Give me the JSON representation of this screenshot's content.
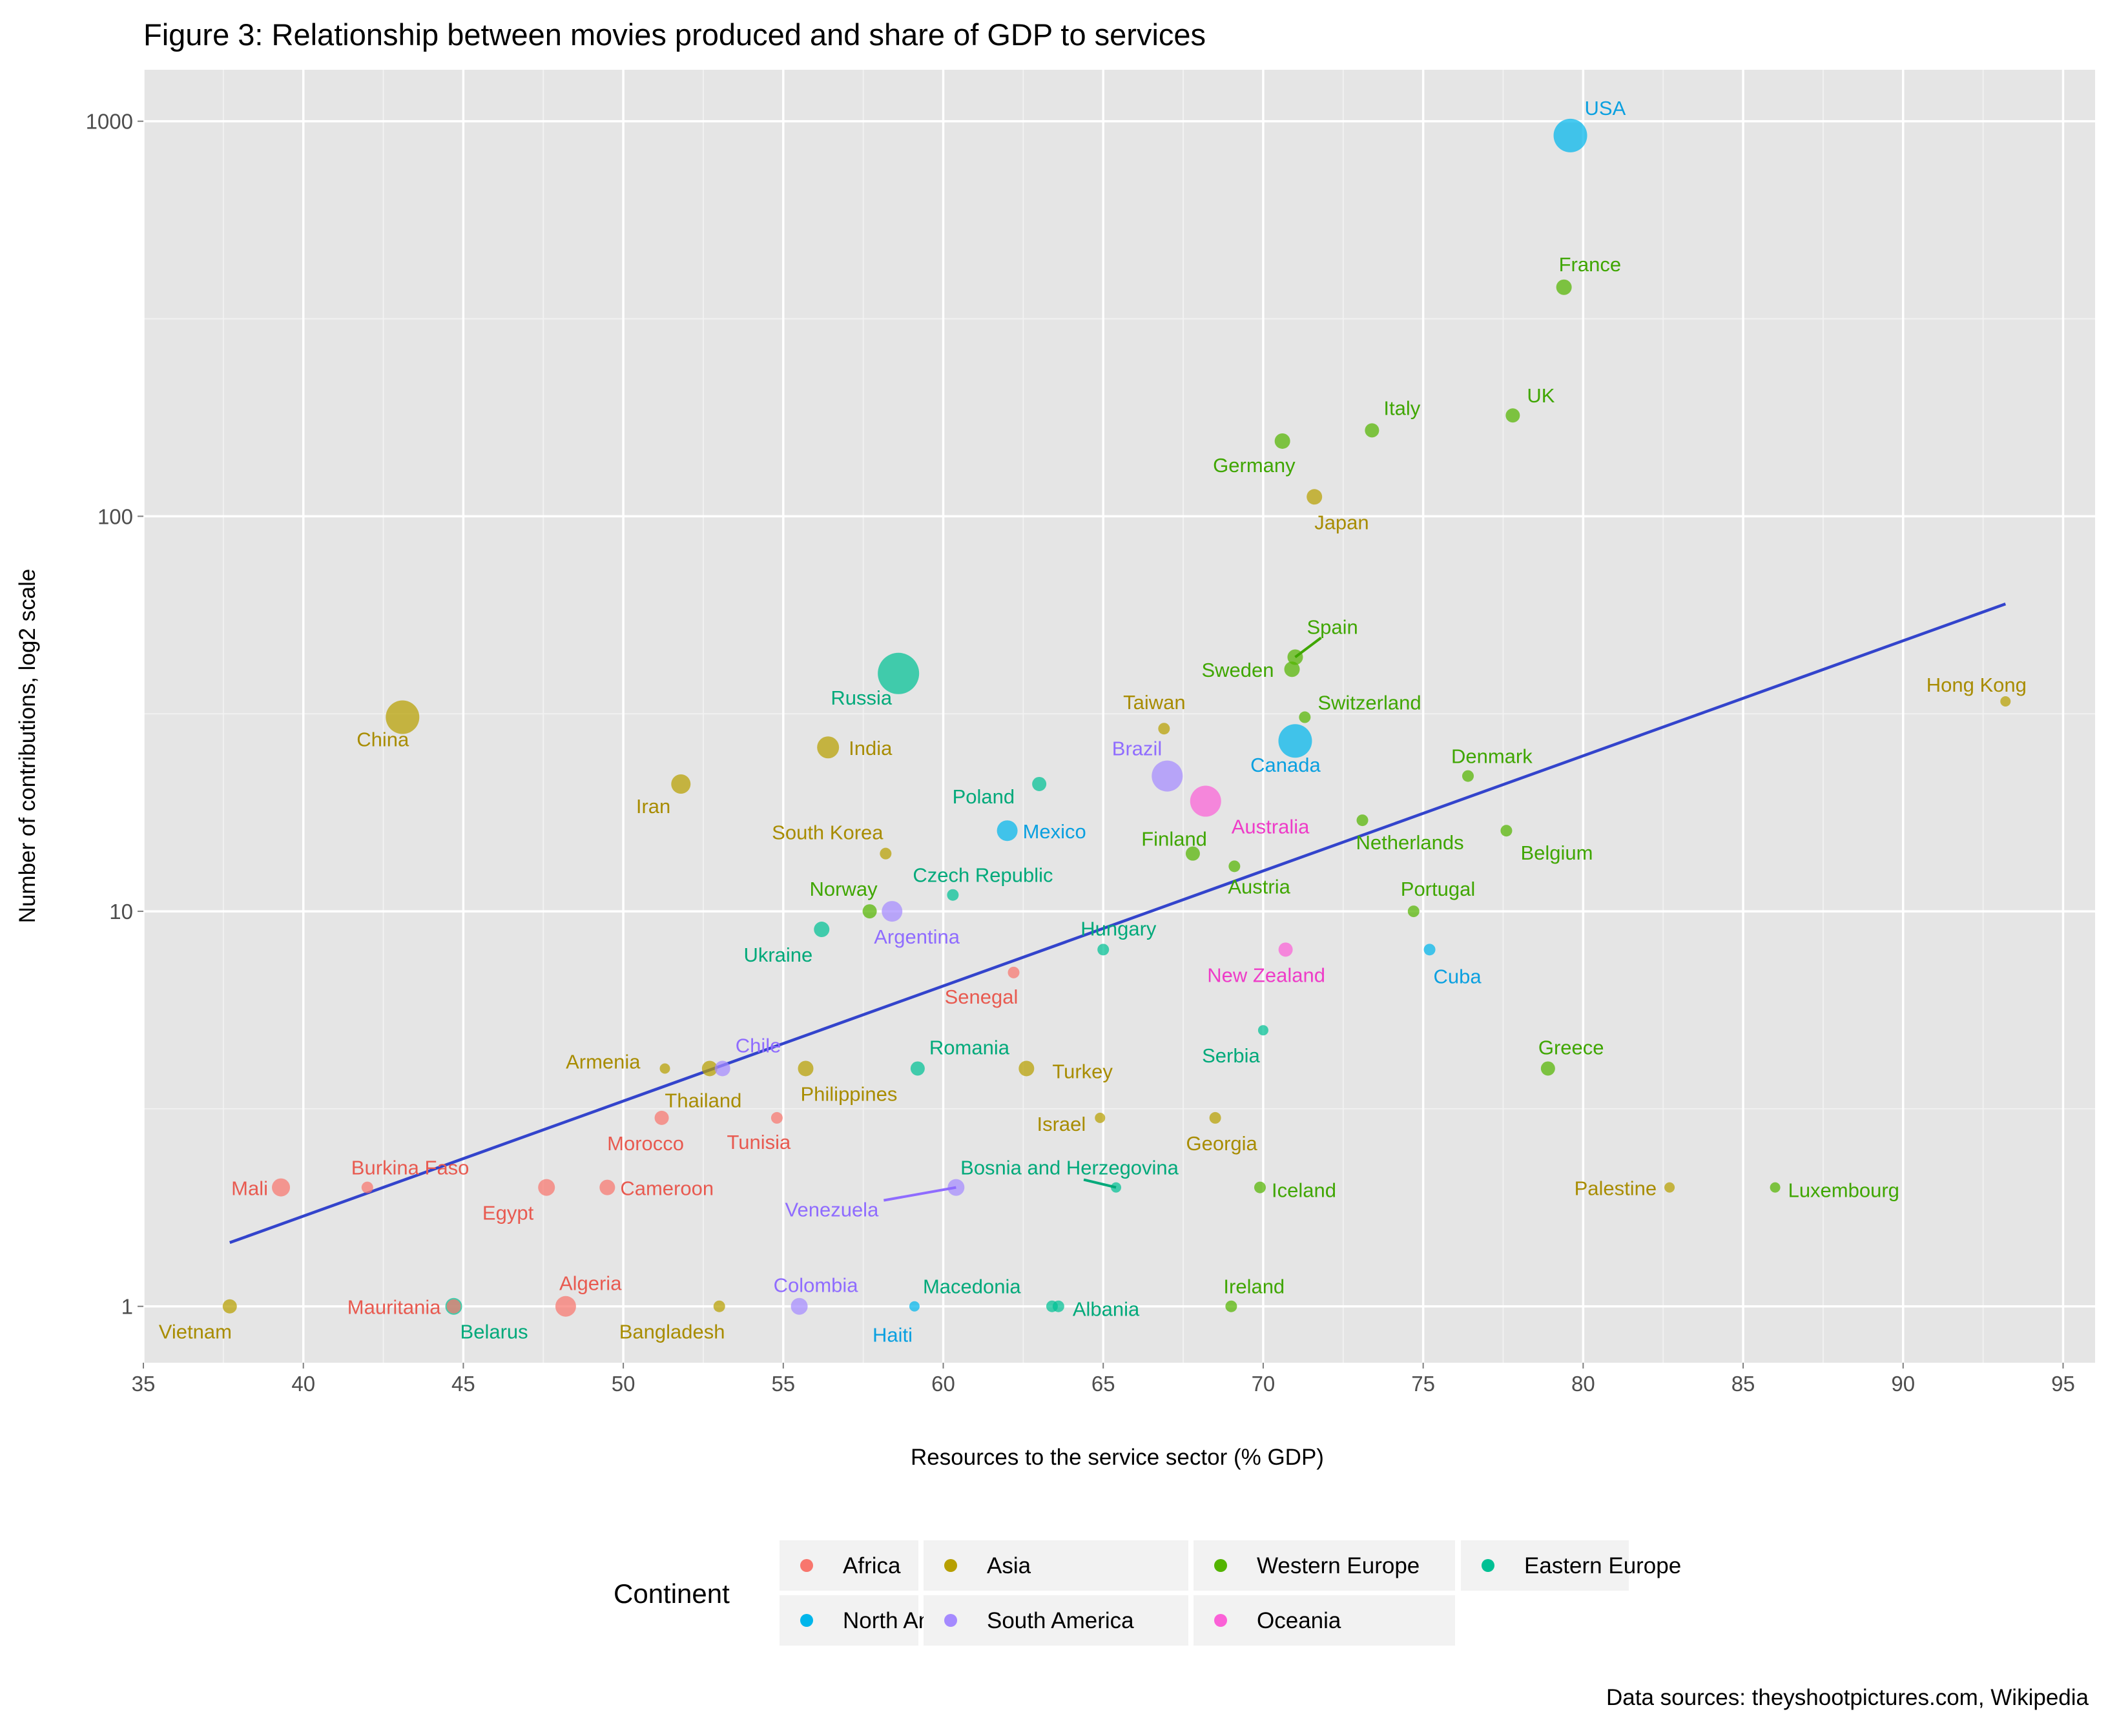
{
  "chart_data": {
    "type": "scatter",
    "title": "Figure 3: Relationship between movies produced and share of GDP to services",
    "xlabel": "Resources to the service sector (% GDP)",
    "ylabel": "Number of contributions, log2 scale",
    "xlim": [
      35,
      96
    ],
    "ylim": [
      0.72,
      1350
    ],
    "y_scale": "log2",
    "x_ticks": [
      "35",
      "40",
      "45",
      "50",
      "55",
      "60",
      "65",
      "70",
      "75",
      "80",
      "85",
      "90",
      "95"
    ],
    "y_ticks": [
      "1",
      "10",
      "100",
      "1000"
    ],
    "grid": true,
    "legend": {
      "title": "Continent",
      "position": "bottom",
      "entries": [
        {
          "label": "Africa",
          "color": "#F8766D"
        },
        {
          "label": "Asia",
          "color": "#B79F00"
        },
        {
          "label": "Western Europe",
          "color": "#53B400"
        },
        {
          "label": "Eastern Europe",
          "color": "#00C094"
        },
        {
          "label": "North America",
          "color": "#00B6EB"
        },
        {
          "label": "South America",
          "color": "#A58AFF"
        },
        {
          "label": "Oceania",
          "color": "#FB61D7"
        }
      ]
    },
    "colors": {
      "Africa": "#F8766D",
      "Asia": "#B79F00",
      "Western Europe": "#53B400",
      "Eastern Europe": "#00C094",
      "North America": "#00B6EB",
      "South America": "#A58AFF",
      "Oceania": "#FB61D7"
    },
    "label_colors": {
      "Africa": "#E85A50",
      "Asia": "#A88C00",
      "Western Europe": "#3FA600",
      "Eastern Europe": "#00A97A",
      "North America": "#0AA0E0",
      "South America": "#8F6CFF",
      "Oceania": "#EE3CC8"
    },
    "trend_line": {
      "x": [
        37.7,
        93.2
      ],
      "y": [
        1.45,
        60
      ],
      "color": "#3344CC"
    },
    "points": [
      {
        "label": "USA",
        "continent": "North America",
        "x": 79.6,
        "y": 920,
        "size": 26
      },
      {
        "label": "France",
        "continent": "Western Europe",
        "x": 79.4,
        "y": 380,
        "size": 12
      },
      {
        "label": "UK",
        "continent": "Western Europe",
        "x": 77.8,
        "y": 180,
        "size": 11
      },
      {
        "label": "Italy",
        "continent": "Western Europe",
        "x": 73.4,
        "y": 165,
        "size": 11
      },
      {
        "label": "Germany",
        "continent": "Western Europe",
        "x": 70.6,
        "y": 155,
        "size": 12
      },
      {
        "label": "Japan",
        "continent": "Asia",
        "x": 71.6,
        "y": 112,
        "size": 12
      },
      {
        "label": "Spain",
        "continent": "Western Europe",
        "x": 71.0,
        "y": 44,
        "size": 12
      },
      {
        "label": "Sweden",
        "continent": "Western Europe",
        "x": 70.9,
        "y": 41,
        "size": 12
      },
      {
        "label": "Russia",
        "continent": "Eastern Europe",
        "x": 58.6,
        "y": 40,
        "size": 32
      },
      {
        "label": "China",
        "continent": "Asia",
        "x": 43.1,
        "y": 31,
        "size": 26
      },
      {
        "label": "Hong Kong",
        "continent": "Asia",
        "x": 93.2,
        "y": 34,
        "size": 8
      },
      {
        "label": "Switzerland",
        "continent": "Western Europe",
        "x": 71.3,
        "y": 31,
        "size": 9
      },
      {
        "label": "Taiwan",
        "continent": "Asia",
        "x": 66.9,
        "y": 29,
        "size": 9
      },
      {
        "label": "Canada",
        "continent": "North America",
        "x": 71.0,
        "y": 27,
        "size": 26
      },
      {
        "label": "India",
        "continent": "Asia",
        "x": 56.4,
        "y": 26,
        "size": 17
      },
      {
        "label": "Brazil",
        "continent": "South America",
        "x": 67.0,
        "y": 22,
        "size": 24
      },
      {
        "label": "Denmark",
        "continent": "Western Europe",
        "x": 76.4,
        "y": 22,
        "size": 9
      },
      {
        "label": "Poland",
        "continent": "Eastern Europe",
        "x": 63.0,
        "y": 21,
        "size": 11
      },
      {
        "label": "Iran",
        "continent": "Asia",
        "x": 51.8,
        "y": 21,
        "size": 15
      },
      {
        "label": "Australia",
        "continent": "Oceania",
        "x": 68.2,
        "y": 19,
        "size": 24
      },
      {
        "label": "Netherlands",
        "continent": "Western Europe",
        "x": 73.1,
        "y": 17,
        "size": 9
      },
      {
        "label": "Mexico",
        "continent": "North America",
        "x": 62.0,
        "y": 16,
        "size": 16
      },
      {
        "label": "Belgium",
        "continent": "Western Europe",
        "x": 77.6,
        "y": 16,
        "size": 9
      },
      {
        "label": "South Korea",
        "continent": "Asia",
        "x": 58.2,
        "y": 14,
        "size": 9
      },
      {
        "label": "Finland",
        "continent": "Western Europe",
        "x": 67.8,
        "y": 14,
        "size": 11
      },
      {
        "label": "Austria",
        "continent": "Western Europe",
        "x": 69.1,
        "y": 13,
        "size": 9
      },
      {
        "label": "Czech Republic",
        "continent": "Eastern Europe",
        "x": 60.3,
        "y": 11,
        "size": 9
      },
      {
        "label": "Norway",
        "continent": "Western Europe",
        "x": 57.7,
        "y": 10,
        "size": 11
      },
      {
        "label": "Argentina",
        "continent": "South America",
        "x": 58.4,
        "y": 10,
        "size": 16
      },
      {
        "label": "Portugal",
        "continent": "Western Europe",
        "x": 74.7,
        "y": 10,
        "size": 9
      },
      {
        "label": "Ukraine",
        "continent": "Eastern Europe",
        "x": 56.2,
        "y": 9,
        "size": 12
      },
      {
        "label": "Hungary",
        "continent": "Eastern Europe",
        "x": 65.0,
        "y": 8,
        "size": 9
      },
      {
        "label": "New Zealand",
        "continent": "Oceania",
        "x": 70.7,
        "y": 8,
        "size": 11
      },
      {
        "label": "Cuba",
        "continent": "North America",
        "x": 75.2,
        "y": 8,
        "size": 9
      },
      {
        "label": "Senegal",
        "continent": "Africa",
        "x": 62.2,
        "y": 7,
        "size": 9
      },
      {
        "label": "Serbia",
        "continent": "Eastern Europe",
        "x": 70.0,
        "y": 5,
        "size": 8
      },
      {
        "label": "Armenia",
        "continent": "Asia",
        "x": 51.3,
        "y": 4,
        "size": 8
      },
      {
        "label": "Thailand",
        "continent": "Asia",
        "x": 52.7,
        "y": 4,
        "size": 12
      },
      {
        "label": "Chile",
        "continent": "South America",
        "x": 53.1,
        "y": 4,
        "size": 12
      },
      {
        "label": "Philippines",
        "continent": "Asia",
        "x": 55.7,
        "y": 4,
        "size": 12
      },
      {
        "label": "Romania",
        "continent": "Eastern Europe",
        "x": 59.2,
        "y": 4,
        "size": 11
      },
      {
        "label": "Turkey",
        "continent": "Asia",
        "x": 62.6,
        "y": 4,
        "size": 12
      },
      {
        "label": "Greece",
        "continent": "Western Europe",
        "x": 78.9,
        "y": 4,
        "size": 11
      },
      {
        "label": "Morocco",
        "continent": "Africa",
        "x": 51.2,
        "y": 3,
        "size": 11
      },
      {
        "label": "Tunisia",
        "continent": "Africa",
        "x": 54.8,
        "y": 3,
        "size": 9
      },
      {
        "label": "Israel",
        "continent": "Asia",
        "x": 64.9,
        "y": 3,
        "size": 8
      },
      {
        "label": "Georgia",
        "continent": "Asia",
        "x": 68.5,
        "y": 3,
        "size": 9
      },
      {
        "label": "Mali",
        "continent": "Africa",
        "x": 39.3,
        "y": 2,
        "size": 14
      },
      {
        "label": "Burkina Faso",
        "continent": "Africa",
        "x": 42.0,
        "y": 2,
        "size": 9
      },
      {
        "label": "Egypt",
        "continent": "Africa",
        "x": 47.6,
        "y": 2,
        "size": 13
      },
      {
        "label": "Cameroon",
        "continent": "Africa",
        "x": 49.5,
        "y": 2,
        "size": 12
      },
      {
        "label": "Venezuela",
        "continent": "South America",
        "x": 60.4,
        "y": 2,
        "size": 13
      },
      {
        "label": "Bosnia and Herzegovina",
        "continent": "Eastern Europe",
        "x": 65.4,
        "y": 2,
        "size": 8
      },
      {
        "label": "Iceland",
        "continent": "Western Europe",
        "x": 69.9,
        "y": 2,
        "size": 9
      },
      {
        "label": "Palestine",
        "continent": "Asia",
        "x": 82.7,
        "y": 2,
        "size": 8
      },
      {
        "label": "Luxembourg",
        "continent": "Western Europe",
        "x": 86.0,
        "y": 2,
        "size": 8
      },
      {
        "label": "Vietnam",
        "continent": "Asia",
        "x": 37.7,
        "y": 1,
        "size": 11
      },
      {
        "label": "Mauritania",
        "continent": "Africa",
        "x": 44.7,
        "y": 1,
        "size": 11
      },
      {
        "label": "Belarus",
        "continent": "Eastern Europe",
        "x": 44.7,
        "y": 1,
        "size": 13
      },
      {
        "label": "Algeria",
        "continent": "Africa",
        "x": 48.2,
        "y": 1,
        "size": 16
      },
      {
        "label": "Bangladesh",
        "continent": "Asia",
        "x": 53.0,
        "y": 1,
        "size": 9
      },
      {
        "label": "Colombia",
        "continent": "South America",
        "x": 55.5,
        "y": 1,
        "size": 13
      },
      {
        "label": "Haiti",
        "continent": "North America",
        "x": 59.1,
        "y": 1,
        "size": 8
      },
      {
        "label": "Macedonia",
        "continent": "Eastern Europe",
        "x": 63.4,
        "y": 1,
        "size": 9
      },
      {
        "label": "Albania",
        "continent": "Eastern Europe",
        "x": 63.6,
        "y": 1,
        "size": 9
      },
      {
        "label": "Ireland",
        "continent": "Western Europe",
        "x": 69.0,
        "y": 1,
        "size": 9
      }
    ]
  },
  "source_note": "Data sources: theyshootpictures.com, Wikipedia"
}
